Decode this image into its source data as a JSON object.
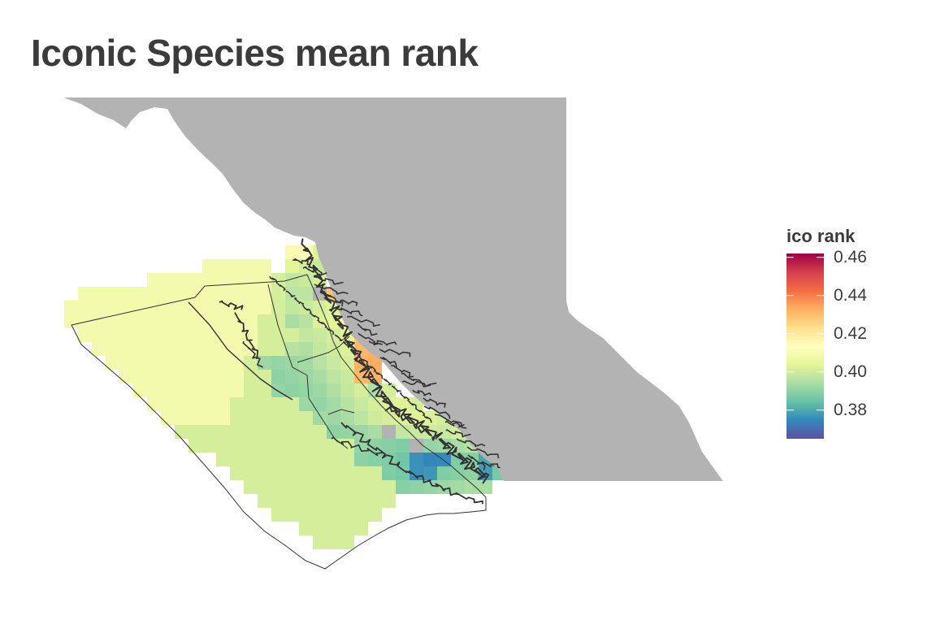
{
  "title": "Iconic Species mean rank",
  "legend": {
    "title": "ico rank",
    "ticks": [
      {
        "value": 0.46,
        "label": "0.46"
      },
      {
        "value": 0.44,
        "label": "0.44"
      },
      {
        "value": 0.42,
        "label": "0.42"
      },
      {
        "value": 0.4,
        "label": "0.40"
      },
      {
        "value": 0.38,
        "label": "0.38"
      }
    ],
    "range": [
      0.365,
      0.462
    ],
    "palette": [
      "#5e4fa2",
      "#3288bd",
      "#66c2a5",
      "#abdda4",
      "#e6f598",
      "#ffffbf",
      "#fee08b",
      "#fdae61",
      "#f46d43",
      "#d53e4f",
      "#9e0142"
    ]
  },
  "map": {
    "land_color": "#b3b3b3",
    "boundary_color": "#333333",
    "no_data_color": "#b3b3b3"
  }
}
